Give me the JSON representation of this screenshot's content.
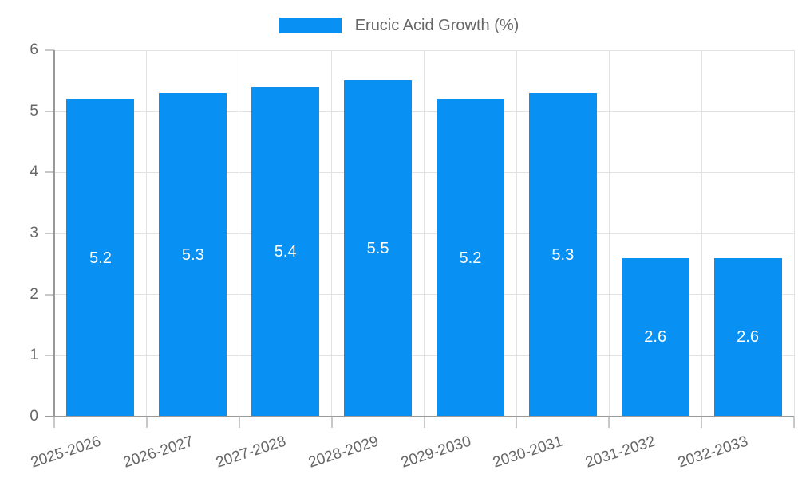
{
  "chart_data": {
    "type": "bar",
    "title": "Erucic Acid Growth (%)",
    "categories": [
      "2025-2026",
      "2026-2027",
      "2027-2028",
      "2028-2029",
      "2029-2030",
      "2030-2031",
      "2031-2032",
      "2032-2033"
    ],
    "values": [
      5.2,
      5.3,
      5.4,
      5.5,
      5.2,
      5.3,
      2.6,
      2.6
    ],
    "bar_value_labels": [
      "5.2",
      "5.3",
      "5.4",
      "5.5",
      "5.2",
      "5.3",
      "2.6",
      "2.6"
    ],
    "xlabel": "",
    "ylabel": "",
    "ylim": [
      0,
      6
    ],
    "yticks": [
      0,
      1,
      2,
      3,
      4,
      5,
      6
    ],
    "ytick_labels": [
      "0",
      "1",
      "2",
      "3",
      "4",
      "5",
      "6"
    ],
    "grid": true,
    "legend_position": "top-center",
    "colors": {
      "bar": "#0891f3",
      "bar_value_text": "#ffffff",
      "grid": "#e2e2e2",
      "axis": "#999999",
      "tick_mark": "#c9c9c9",
      "tick_text": "#666666",
      "legend_text": "#666666",
      "background": "#ffffff"
    }
  }
}
